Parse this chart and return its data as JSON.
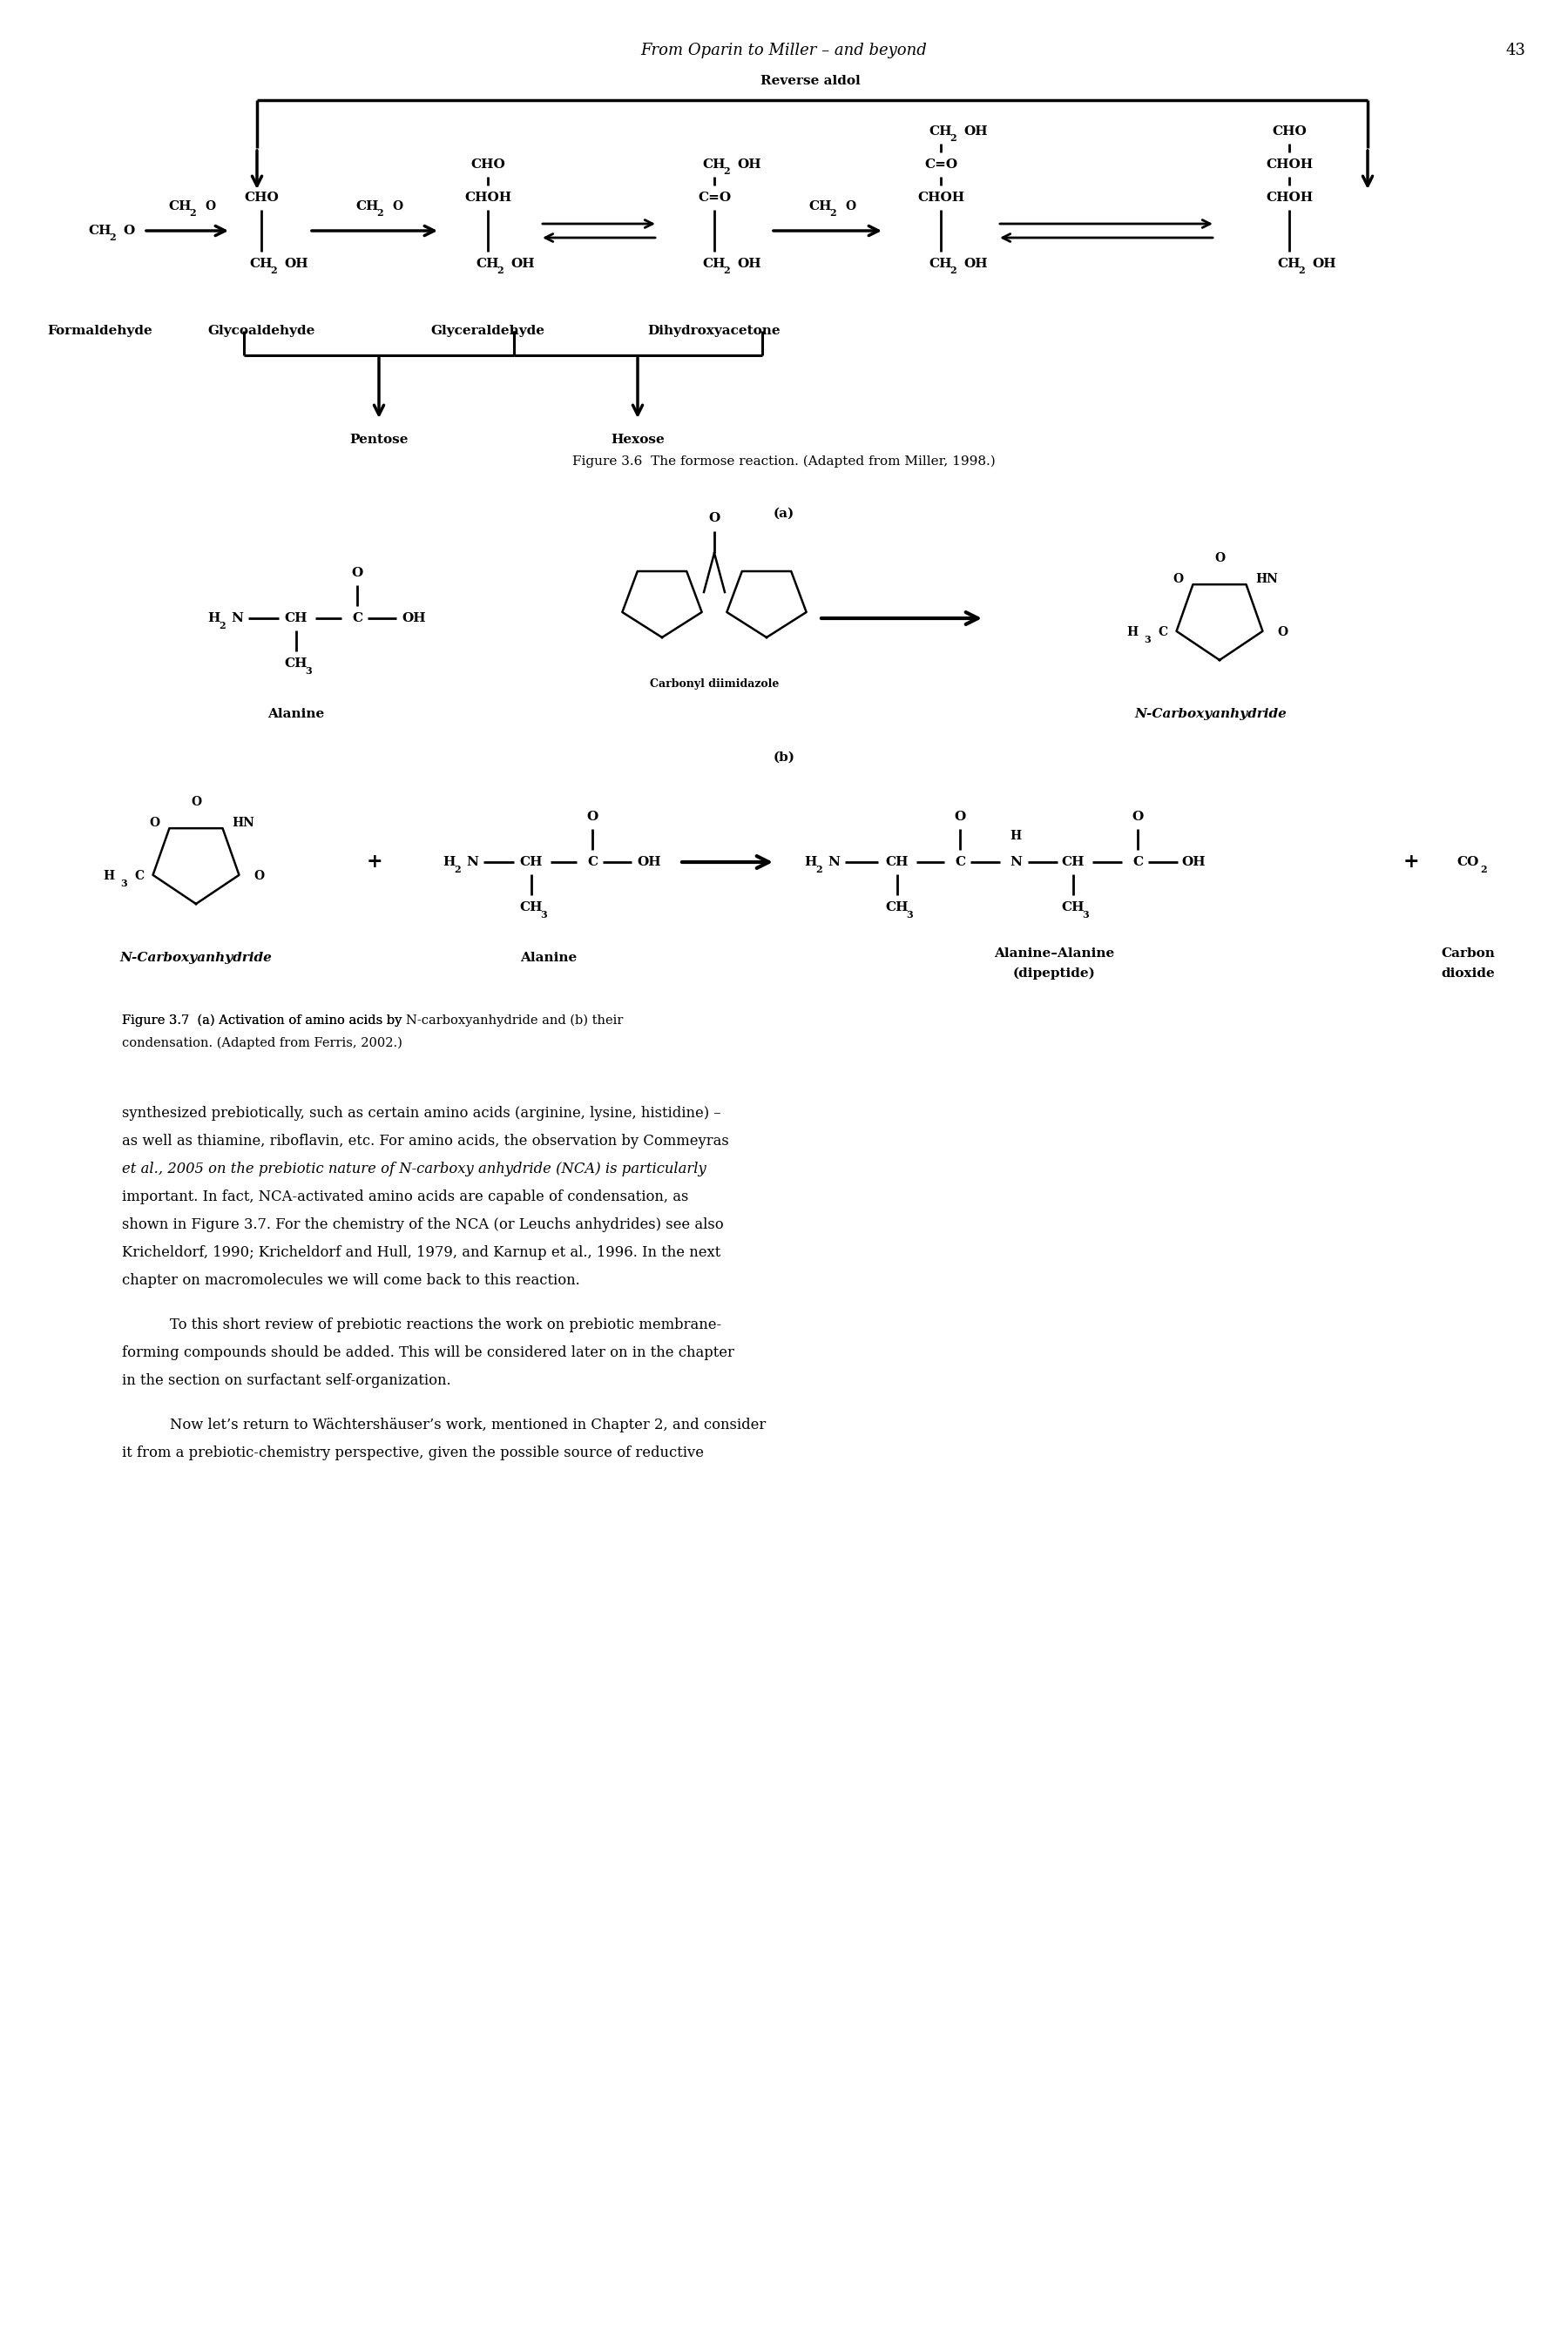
{
  "page_header_italic": "From Oparin to Miller – and beyond",
  "page_number": "43",
  "fig36_caption": "Figure 3.6  The formose reaction. (Adapted from Miller, 1998.)",
  "fig37_caption_line1": "Figure 3.7  (a) Activation of amino acids by ",
  "fig37_caption_italic": "N",
  "fig37_caption_line1b": "-carboxyanhydride and (b) their",
  "fig37_caption_line2": "condensation. (Adapted from Ferris, 2002.)",
  "body_para1": [
    "synthesized prebiotically, such as certain amino acids (arginine, lysine, histidine) –",
    "as well as thiamine, riboflavin, etc. For amino acids, the observation by Commeyras"
  ],
  "body_para1_italic_line": "et al.",
  "body_para1_cont": ", 2005 on the prebiotic nature of ",
  "body_para1_italic2": "N",
  "body_para1_cont2": "-carboxy anhydride (NCA) is particularly",
  "body_para1_rest": [
    "important. In fact, NCA-activated amino acids are capable of condensation, as",
    "shown in Figure 3.7. For the chemistry of the NCA (or Leuchs anhydrides) see also",
    "Kricheldorf, 1990; Kricheldorf and Hull, 1979, and Karnup ",
    "chapter on macromolecules we will come back to this reaction."
  ],
  "body_para2_indent": "To this short review of prebiotic reactions the work on prebiotic membrane-",
  "body_para2_rest": [
    "forming compounds should be added. This will be considered later on in the chapter",
    "in the section on surfactant self-organization."
  ],
  "body_para3_indent": "Now let’s return to Wächtershäuser’s work, mentioned in Chapter 2, and consider",
  "body_para3_rest": "it from a prebiotic-chemistry perspective, given the possible source of reductive",
  "background_color": "#ffffff",
  "text_color": "#000000"
}
